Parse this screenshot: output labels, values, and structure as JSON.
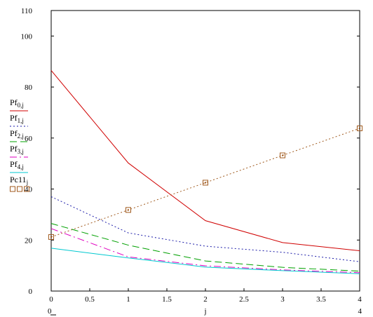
{
  "chart_data": {
    "type": "line",
    "title": "",
    "xlabel": "j",
    "ylabel": "",
    "xlim": [
      0,
      4
    ],
    "ylim": [
      0,
      110
    ],
    "x_ticks": [
      "0",
      "0.5",
      "1",
      "1.5",
      "2",
      "2.5",
      "3",
      "3.5",
      "4"
    ],
    "y_ticks": [
      {
        "label": "0",
        "value": 0
      },
      {
        "label": "20",
        "value": 20
      },
      {
        "label": "40",
        "value": 40
      },
      {
        "label": "60",
        "value": 60
      },
      {
        "label": "80",
        "value": 80
      },
      {
        "label": "100",
        "value": 100
      },
      {
        "label": "110",
        "value": 110
      }
    ],
    "x_range_labels": {
      "left": "0",
      "right": "4"
    },
    "grid": false,
    "legend_position": "left",
    "x": [
      0,
      1,
      2,
      3,
      4
    ],
    "series": [
      {
        "name": "Pf0,j",
        "base": "Pf",
        "sub": "0,j",
        "color": "#d00000",
        "dash": "",
        "marker": "",
        "values": [
          86.5,
          50.2,
          27.6,
          19.0,
          15.8
        ]
      },
      {
        "name": "Pf1,j",
        "base": "Pf",
        "sub": "1,j",
        "color": "#1a1aa8",
        "dash": "2,3",
        "marker": "",
        "values": [
          37.0,
          22.8,
          17.6,
          15.2,
          11.5
        ]
      },
      {
        "name": "Pf2,j",
        "base": "Pf",
        "sub": "2,j",
        "color": "#00a000",
        "dash": "10,5",
        "marker": "",
        "values": [
          26.5,
          18.0,
          11.8,
          9.3,
          7.8
        ]
      },
      {
        "name": "Pf3,j",
        "base": "Pf",
        "sub": "3,j",
        "color": "#e000c0",
        "dash": "10,4,2,4",
        "marker": "",
        "values": [
          24.5,
          13.4,
          9.9,
          8.3,
          7.2
        ]
      },
      {
        "name": "Pf4,j",
        "base": "Pf",
        "sub": "4,j",
        "color": "#00c8d0",
        "dash": "",
        "marker": "",
        "values": [
          16.8,
          13.0,
          9.4,
          8.0,
          6.8
        ]
      },
      {
        "name": "Pc11j",
        "base": "Pc11",
        "sub": "j",
        "color": "#a05a1e",
        "dash": "2,3",
        "marker": "square",
        "values": [
          21.2,
          31.8,
          42.5,
          53.2,
          63.8
        ]
      }
    ]
  }
}
